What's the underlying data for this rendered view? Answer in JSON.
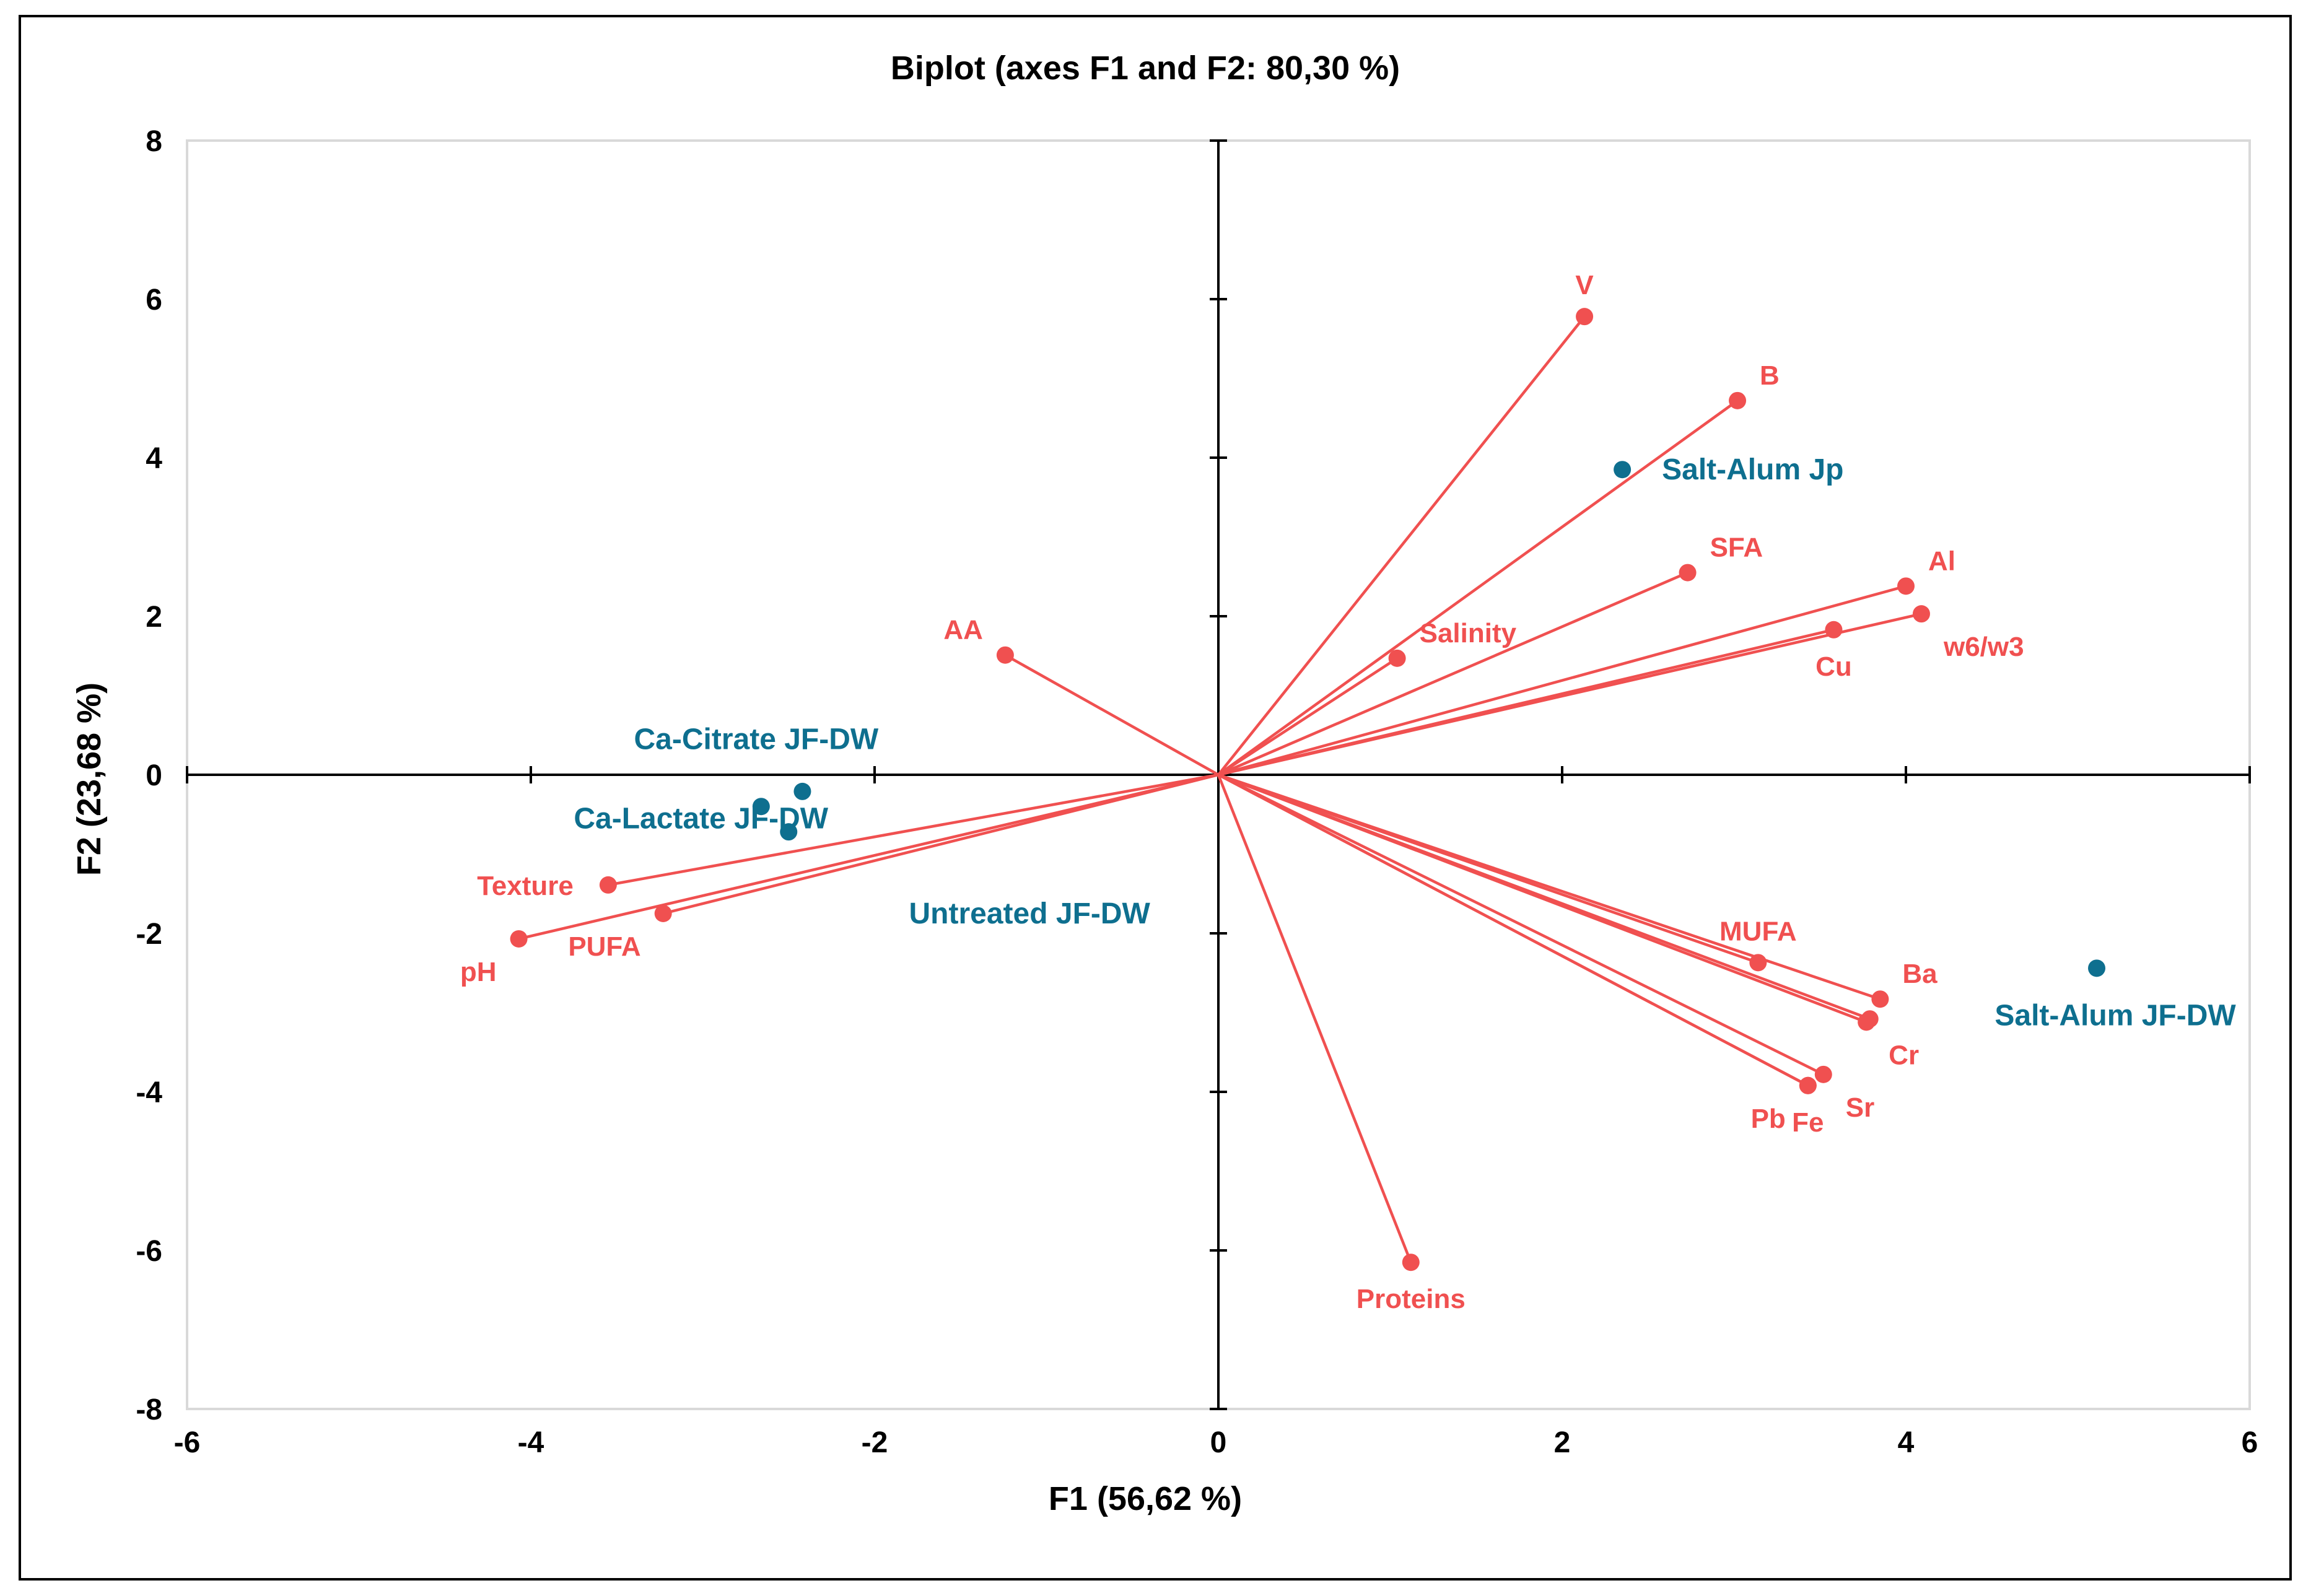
{
  "chart_data": {
    "type": "scatter",
    "subtype": "pca-biplot",
    "title": "Biplot (axes F1 and F2: 80,30 %)",
    "xlabel": "F1 (56,62 %)",
    "ylabel": "F2 (23,68 %)",
    "xlim": [
      -6,
      6
    ],
    "ylim": [
      -8,
      8
    ],
    "xticks": [
      "-6",
      "-4",
      "-2",
      "0",
      "2",
      "4",
      "6"
    ],
    "yticks": [
      "8",
      "6",
      "4",
      "2",
      "0",
      "-2",
      "-4",
      "-6",
      "-8"
    ],
    "colors": {
      "variables": "#f05050",
      "observations": "#0e6f8f",
      "axes": "#000000",
      "frame": "#d9d9d9"
    },
    "variables": [
      {
        "name": "V",
        "x": 2.13,
        "y": 5.78,
        "label_anchor": "n"
      },
      {
        "name": "B",
        "x": 3.02,
        "y": 4.72,
        "label_anchor": "ne"
      },
      {
        "name": "SFA",
        "x": 2.73,
        "y": 2.55,
        "label_anchor": "ne"
      },
      {
        "name": "Salinity",
        "x": 1.04,
        "y": 1.47,
        "label_anchor": "ne"
      },
      {
        "name": "Al",
        "x": 4.0,
        "y": 2.38,
        "label_anchor": "ne"
      },
      {
        "name": "w6/w3",
        "x": 4.09,
        "y": 2.03,
        "label_anchor": "se"
      },
      {
        "name": "Cu",
        "x": 3.58,
        "y": 1.83,
        "label_anchor": "s"
      },
      {
        "name": "AA",
        "x": -1.24,
        "y": 1.51,
        "label_anchor": "nw"
      },
      {
        "name": "Texture",
        "x": -3.55,
        "y": -1.39,
        "label_anchor": "w"
      },
      {
        "name": "PUFA",
        "x": -3.23,
        "y": -1.75,
        "label_anchor": "sw"
      },
      {
        "name": "pH",
        "x": -4.07,
        "y": -2.07,
        "label_anchor": "sw"
      },
      {
        "name": "MUFA",
        "x": 3.14,
        "y": -2.37,
        "label_anchor": "n"
      },
      {
        "name": "Ba",
        "x": 3.85,
        "y": -2.83,
        "label_anchor": "ne"
      },
      {
        "name": "Cr",
        "x": 3.77,
        "y": -3.12,
        "label_anchor": "se"
      },
      {
        "name": "Sr",
        "x": 3.52,
        "y": -3.78,
        "label_anchor": "se"
      },
      {
        "name": "Fe",
        "x": 3.43,
        "y": -3.92,
        "label_anchor": "s"
      },
      {
        "name": "Pb",
        "x": 3.43,
        "y": -3.92,
        "label_anchor": "sw"
      },
      {
        "name": "Proteins",
        "x": 1.12,
        "y": -6.15,
        "label_anchor": "s"
      }
    ],
    "extra_points": [
      {
        "x": 3.79,
        "y": -3.08
      }
    ],
    "observations": [
      {
        "name": "Salt-Alum Jp",
        "x": 2.35,
        "y": 3.85,
        "label_anchor": "e"
      },
      {
        "name": "Salt-Alum JF-DW",
        "x": 5.11,
        "y": -2.44,
        "label_anchor": "s"
      },
      {
        "name": "Untreated JF-DW",
        "x": -2.5,
        "y": -0.72,
        "label_anchor": "none"
      },
      {
        "name": "Ca-Citrate JF-DW",
        "x": -2.42,
        "y": -0.21,
        "label_anchor": "none"
      },
      {
        "name": "Ca-Lactate JF-DW",
        "x": -2.66,
        "y": -0.4,
        "label_anchor": "none"
      }
    ],
    "observation_label_positions": [
      {
        "name": "Ca-Citrate JF-DW",
        "x": -3.4,
        "y": 0.45
      },
      {
        "name": "Ca-Lactate JF-DW",
        "x": -3.75,
        "y": -0.55
      },
      {
        "name": "Untreated JF-DW",
        "x": -1.8,
        "y": -1.75
      }
    ]
  }
}
